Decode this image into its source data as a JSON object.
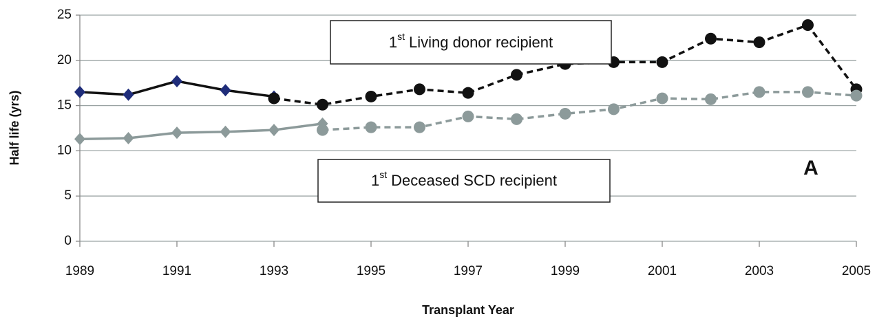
{
  "chart_data": {
    "type": "line",
    "x_label": "Transplant Year",
    "y_label": "Half life (yrs)",
    "xlim": [
      1989,
      2005
    ],
    "xticks": [
      1989,
      1991,
      1993,
      1995,
      1997,
      1999,
      2001,
      2003,
      2005
    ],
    "ylim": [
      0,
      25
    ],
    "yticks": [
      0,
      5,
      10,
      15,
      20,
      25
    ],
    "grid": true,
    "series": [
      {
        "color": "#111111",
        "marker_color": "#1f2d7a",
        "marker": "diamond",
        "dashed": false,
        "x": [
          1989,
          1990,
          1991,
          1992,
          1993
        ],
        "values": [
          16.5,
          16.2,
          17.7,
          16.7,
          16.0
        ]
      },
      {
        "color": "#111111",
        "marker_color": "#111111",
        "marker": "circle",
        "dashed": true,
        "x": [
          1993,
          1994,
          1995,
          1996,
          1997,
          1998,
          1999,
          2000,
          2001,
          2002,
          2003,
          2004,
          2005
        ],
        "values": [
          15.8,
          15.1,
          16.0,
          16.8,
          16.4,
          18.4,
          19.6,
          19.8,
          19.8,
          22.4,
          22.0,
          23.9,
          16.8
        ]
      },
      {
        "color": "#8c9a9a",
        "marker_color": "#8c9a9a",
        "marker": "diamond",
        "dashed": false,
        "x": [
          1989,
          1990,
          1991,
          1992,
          1993,
          1994
        ],
        "values": [
          11.3,
          11.4,
          12.0,
          12.1,
          12.3,
          13.0
        ]
      },
      {
        "color": "#8c9a9a",
        "marker_color": "#8c9a9a",
        "marker": "circle",
        "dashed": true,
        "x": [
          1994,
          1995,
          1996,
          1997,
          1998,
          1999,
          2000,
          2001,
          2002,
          2003,
          2004,
          2005
        ],
        "values": [
          12.3,
          12.6,
          12.6,
          13.8,
          13.5,
          14.1,
          14.6,
          15.8,
          15.7,
          16.5,
          16.5,
          16.1
        ]
      }
    ],
    "annotations": [
      {
        "number": "1",
        "superscript": "st",
        "text": "Living donor recipient"
      },
      {
        "number": "1",
        "superscript": "st",
        "text": "Deceased SCD recipient"
      }
    ],
    "panel_label": "A"
  }
}
